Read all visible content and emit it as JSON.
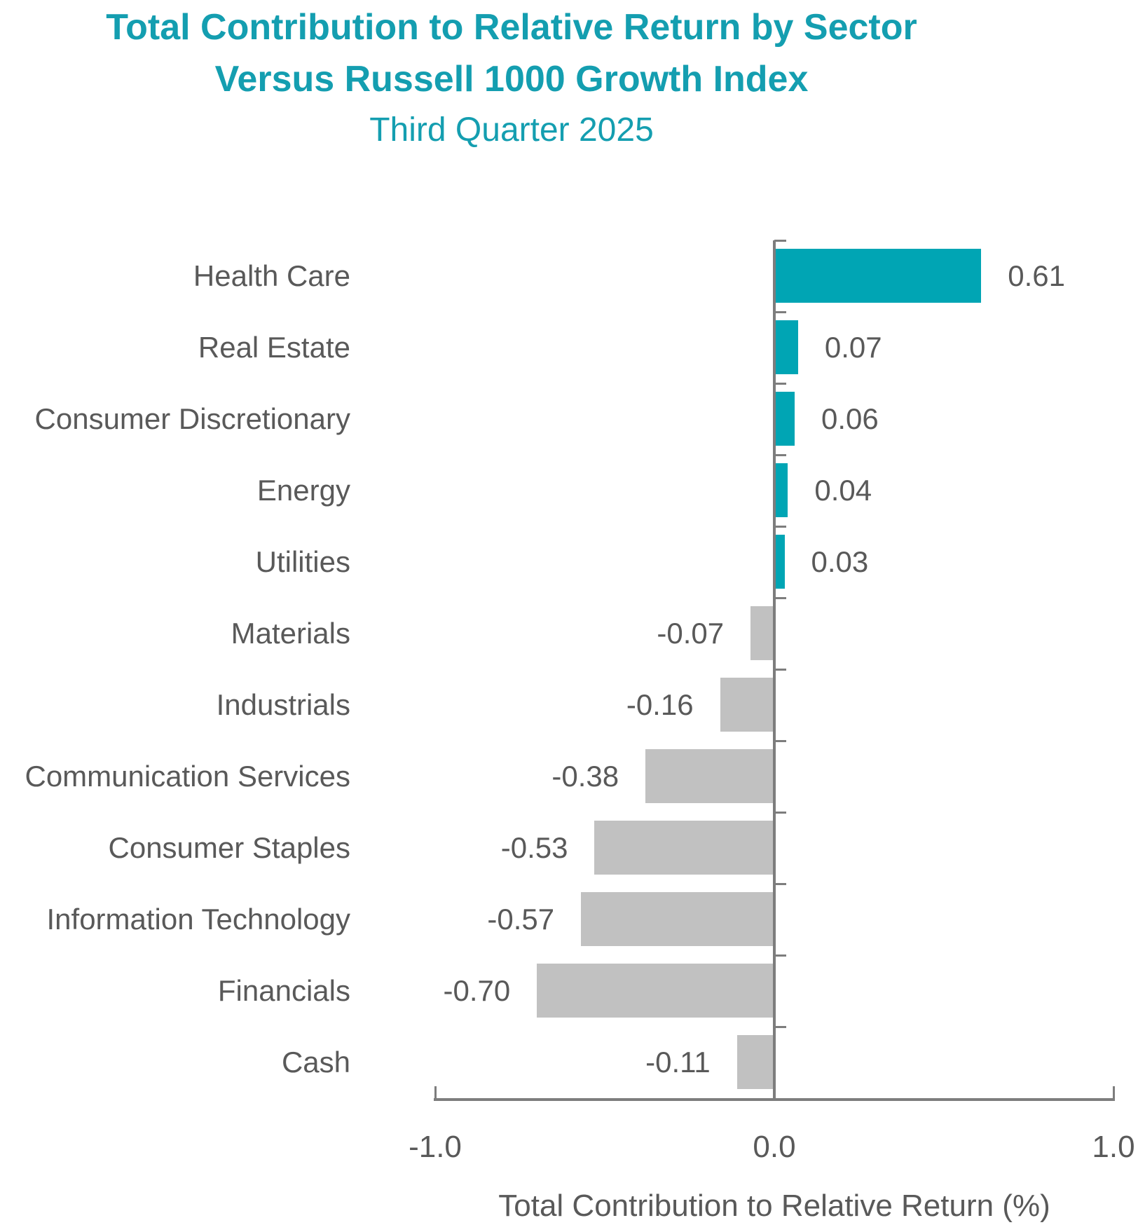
{
  "title": {
    "line1": "Total Contribution to Relative Return by Sector",
    "line2": "Versus Russell 1000 Growth Index",
    "line3": "Third Quarter 2025"
  },
  "chart_data": {
    "type": "bar",
    "orientation": "horizontal",
    "title": "Total Contribution to Relative Return by Sector Versus Russell 1000 Growth Index",
    "subtitle": "Third Quarter 2025",
    "categories": [
      "Health Care",
      "Real Estate",
      "Consumer Discretionary",
      "Energy",
      "Utilities",
      "Materials",
      "Industrials",
      "Communication Services",
      "Consumer Staples",
      "Information Technology",
      "Financials",
      "Cash"
    ],
    "values": [
      0.61,
      0.07,
      0.06,
      0.04,
      0.03,
      -0.07,
      -0.16,
      -0.38,
      -0.53,
      -0.57,
      -0.7,
      -0.11
    ],
    "value_labels": [
      "0.61",
      "0.07",
      "0.06",
      "0.04",
      "0.03",
      "-0.07",
      "-0.16",
      "-0.38",
      "-0.53",
      "-0.57",
      "-0.70",
      "-0.11"
    ],
    "xlabel": "Total Contribution to Relative Return (%)",
    "xlim": [
      -1.0,
      1.0
    ],
    "x_ticks": [
      {
        "value": -1.0,
        "label": "-1.0"
      },
      {
        "value": 0.0,
        "label": "0.0"
      },
      {
        "value": 1.0,
        "label": "1.0"
      }
    ],
    "grid": false,
    "legend": false,
    "positive_color": "#00A5B4",
    "negative_color": "#C1C1C1"
  },
  "colors": {
    "title_teal": "#149EB0",
    "bar_positive": "#00A5B4",
    "bar_negative": "#C1C1C1",
    "axis_gray": "#7D7D7D",
    "text_gray": "#595959"
  }
}
